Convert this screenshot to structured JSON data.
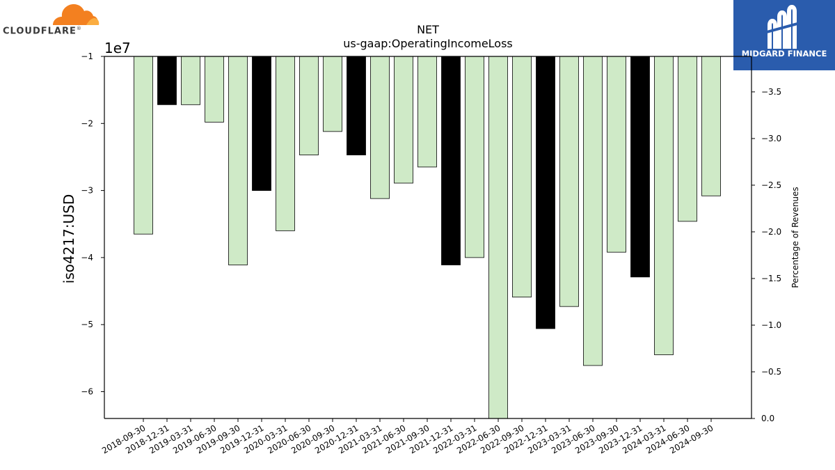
{
  "logos": {
    "left_text": "CLOUDFLARE",
    "left_mark": "®",
    "right_text": "MIDGARD FINANCE",
    "left_icon": "cloud-icon",
    "right_icon": "midgard-m-icon"
  },
  "colors": {
    "bar_light": "#cfeac7",
    "bar_dark": "#000000",
    "axis": "#000000",
    "cloud": "#f38020",
    "midgard_bg": "#2a5cad"
  },
  "chart_data": {
    "type": "bar",
    "title": "NET",
    "subtitle": "us-gaap:OperatingIncomeLoss",
    "ylabel": "iso4217:USD",
    "y2label": "Percentage of Revenues",
    "y_offset_label": "1e7",
    "ylim": [
      -6.4,
      -1
    ],
    "yticks": [
      -1,
      -2,
      -3,
      -4,
      -5,
      -6
    ],
    "y2lim": [
      0,
      -3.88
    ],
    "y2ticks": [
      -3.5,
      -3.0,
      -2.5,
      -2.0,
      -1.5,
      -1.0,
      -0.5,
      0.0
    ],
    "y2ticklabels": [
      "−3.5",
      "−3.0",
      "−2.5",
      "−2.0",
      "−1.5",
      "−1.0",
      "−0.5",
      "0.0"
    ],
    "yticklabels": [
      "−1",
      "−2",
      "−3",
      "−4",
      "−5",
      "−6"
    ],
    "categories": [
      "2018-09-30",
      "2018-12-31",
      "2019-03-31",
      "2019-06-30",
      "2019-09-30",
      "2019-12-31",
      "2020-03-31",
      "2020-06-30",
      "2020-09-30",
      "2020-12-31",
      "2021-03-31",
      "2021-06-30",
      "2021-09-30",
      "2021-12-31",
      "2022-03-31",
      "2022-06-30",
      "2022-09-30",
      "2022-12-31",
      "2023-03-31",
      "2023-06-30",
      "2023-09-30",
      "2023-12-31",
      "2024-03-31",
      "2024-06-30",
      "2024-09-30"
    ],
    "values": [
      -3.65,
      -1.72,
      -1.72,
      -1.98,
      -4.11,
      -3.0,
      -3.6,
      -2.47,
      -2.12,
      -2.47,
      -3.12,
      -2.89,
      -2.65,
      -4.11,
      -4.0,
      -6.4,
      -4.59,
      -5.06,
      -4.73,
      -5.61,
      -3.92,
      -4.29,
      -5.45,
      -3.46,
      -3.08
    ],
    "highlight": [
      false,
      true,
      false,
      false,
      false,
      true,
      false,
      false,
      false,
      true,
      false,
      false,
      false,
      true,
      false,
      false,
      false,
      true,
      false,
      false,
      false,
      true,
      false,
      false,
      false
    ]
  }
}
